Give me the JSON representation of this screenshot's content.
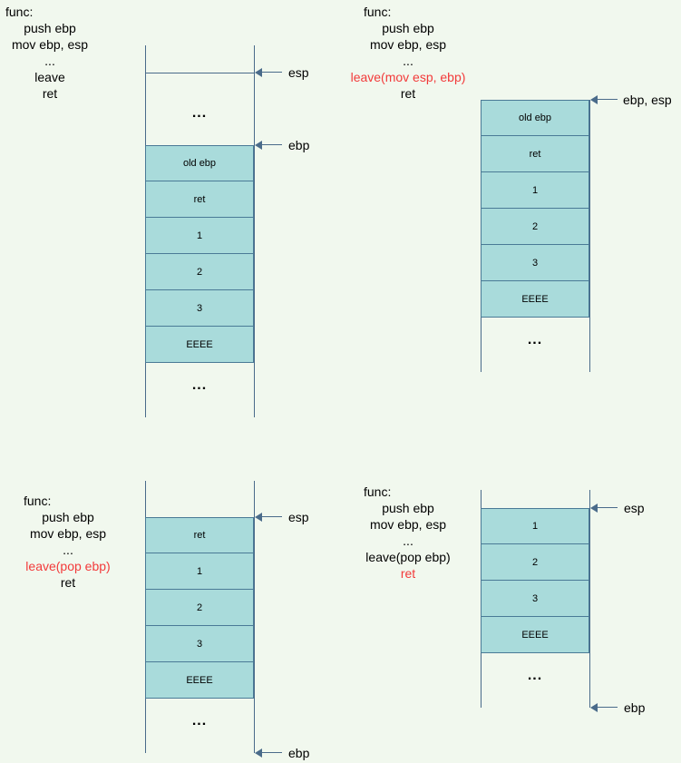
{
  "panels": [
    {
      "code": [
        "func:",
        "push ebp",
        "mov ebp, esp",
        "...",
        "leave",
        "ret"
      ],
      "highlight": [],
      "cells": [
        "old ebp",
        "ret",
        "1",
        "2",
        "3",
        "EEEE"
      ],
      "dots_top": "...",
      "dots_bottom": "...",
      "pointers": [
        "esp",
        "ebp"
      ]
    },
    {
      "code": [
        "func:",
        "push ebp",
        "mov ebp, esp",
        "...",
        "leave(mov esp, ebp)",
        "ret"
      ],
      "highlight": [
        4
      ],
      "cells": [
        "old ebp",
        "ret",
        "1",
        "2",
        "3",
        "EEEE"
      ],
      "dots_bottom": "...",
      "pointers": [
        "ebp, esp"
      ]
    },
    {
      "code": [
        "func:",
        "push ebp",
        "mov ebp, esp",
        "...",
        "leave(pop ebp)",
        "ret"
      ],
      "highlight": [
        4
      ],
      "cells": [
        "ret",
        "1",
        "2",
        "3",
        "EEEE"
      ],
      "dots_bottom": "...",
      "pointers": [
        "esp",
        "ebp"
      ]
    },
    {
      "code": [
        "func:",
        "push ebp",
        "mov ebp, esp",
        "...",
        "leave(pop ebp)",
        "ret"
      ],
      "highlight": [
        5
      ],
      "cells": [
        "1",
        "2",
        "3",
        "EEEE"
      ],
      "dots_bottom": "...",
      "pointers": [
        "esp",
        "ebp"
      ]
    }
  ],
  "colors": {
    "highlight": "#f23a3a",
    "cell_fill": "#a9dbdb",
    "line": "#4a6b8a",
    "background": "#f1f8ee"
  }
}
